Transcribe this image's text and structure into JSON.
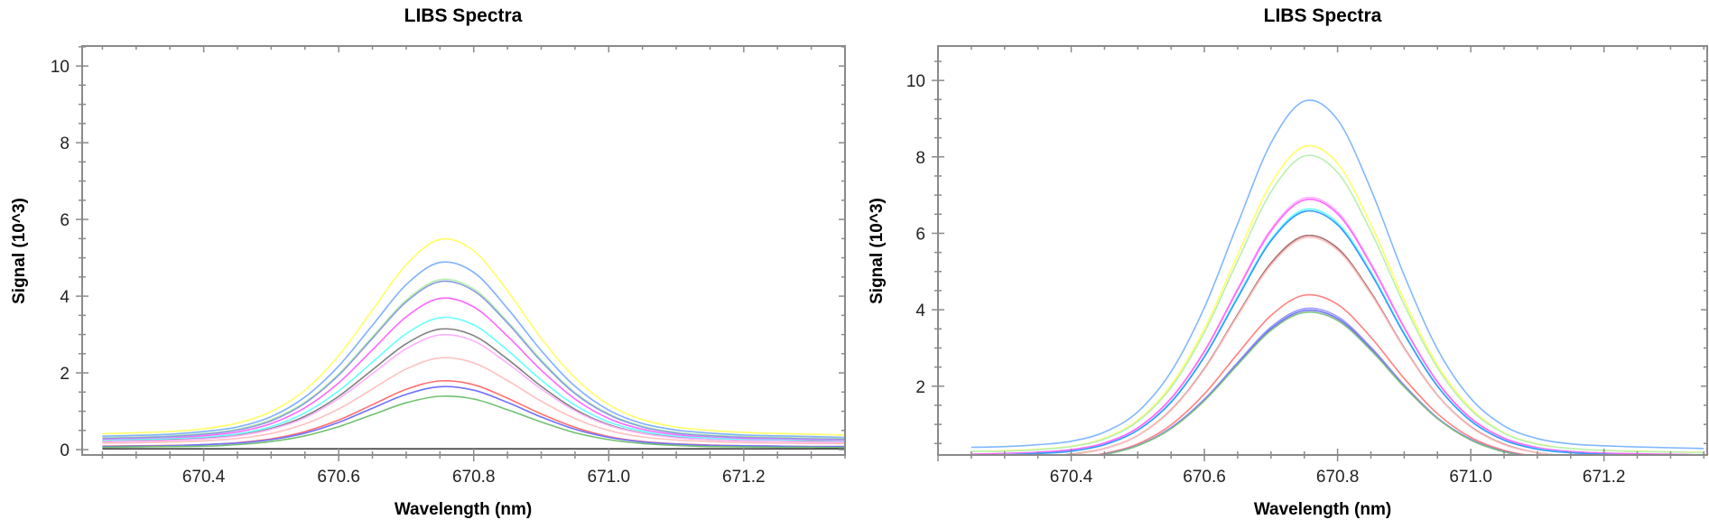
{
  "chart_data": [
    {
      "type": "line",
      "title": "LIBS Spectra",
      "xlabel": "Wavelength (nm)",
      "ylabel": "Signal (10^3)",
      "xlim": [
        670.22,
        671.35
      ],
      "ylim": [
        -0.14,
        10.52
      ],
      "xticks": [
        670.4,
        670.6,
        670.8,
        671.0,
        671.2
      ],
      "xtick_labels": [
        "670.4",
        "670.6",
        "670.8",
        "671.0",
        "671.2"
      ],
      "yticks": [
        0,
        2,
        4,
        6,
        8,
        10
      ],
      "ytick_labels": [
        "0",
        "2",
        "4",
        "6",
        "8",
        "10"
      ],
      "grid": false,
      "x": [
        670.25,
        670.3,
        670.35,
        670.4,
        670.45,
        670.5,
        670.55,
        670.6,
        670.65,
        670.7,
        670.75,
        670.8,
        670.85,
        670.9,
        670.95,
        671.0,
        671.05,
        671.1,
        671.15,
        671.2,
        671.25,
        671.3,
        671.35
      ],
      "series": [
        {
          "color": "#ffff66",
          "values": [
            0.41,
            0.44,
            0.47,
            0.54,
            0.69,
            0.99,
            1.55,
            2.45,
            3.64,
            4.82,
            5.48,
            5.18,
            4.14,
            2.9,
            1.87,
            1.17,
            0.78,
            0.59,
            0.5,
            0.45,
            0.42,
            0.4,
            0.38
          ]
        },
        {
          "color": "#80b0ff",
          "values": [
            0.35,
            0.37,
            0.4,
            0.47,
            0.59,
            0.86,
            1.37,
            2.18,
            3.24,
            4.3,
            4.88,
            4.62,
            3.68,
            2.58,
            1.65,
            1.03,
            0.68,
            0.51,
            0.43,
            0.38,
            0.36,
            0.34,
            0.32
          ]
        },
        {
          "color": "#b8f0b0",
          "values": [
            0.31,
            0.33,
            0.36,
            0.42,
            0.53,
            0.78,
            1.24,
            1.97,
            2.94,
            3.9,
            4.43,
            4.19,
            3.34,
            2.34,
            1.49,
            0.93,
            0.61,
            0.45,
            0.38,
            0.34,
            0.32,
            0.3,
            0.29
          ]
        },
        {
          "color": "#8c9be0",
          "values": [
            0.29,
            0.31,
            0.34,
            0.4,
            0.51,
            0.75,
            1.21,
            1.94,
            2.9,
            3.85,
            4.38,
            4.14,
            3.3,
            2.3,
            1.46,
            0.91,
            0.59,
            0.43,
            0.36,
            0.32,
            0.3,
            0.28,
            0.27
          ]
        },
        {
          "color": "#ff66ff",
          "values": [
            0.26,
            0.28,
            0.3,
            0.36,
            0.46,
            0.68,
            1.09,
            1.74,
            2.6,
            3.46,
            3.94,
            3.72,
            2.96,
            2.07,
            1.32,
            0.81,
            0.53,
            0.39,
            0.32,
            0.29,
            0.27,
            0.25,
            0.24
          ]
        },
        {
          "color": "#66ffff",
          "values": [
            0.24,
            0.26,
            0.28,
            0.32,
            0.41,
            0.6,
            0.96,
            1.53,
            2.28,
            3.02,
            3.44,
            3.25,
            2.59,
            1.81,
            1.16,
            0.72,
            0.48,
            0.35,
            0.3,
            0.26,
            0.25,
            0.23,
            0.22
          ]
        },
        {
          "color": "#808080",
          "values": [
            0.21,
            0.23,
            0.25,
            0.29,
            0.37,
            0.55,
            0.87,
            1.39,
            2.08,
            2.76,
            3.14,
            2.97,
            2.36,
            1.65,
            1.05,
            0.65,
            0.43,
            0.32,
            0.26,
            0.23,
            0.22,
            0.21,
            0.2
          ]
        },
        {
          "color": "#ffb0ff",
          "values": [
            0.21,
            0.22,
            0.24,
            0.28,
            0.36,
            0.53,
            0.83,
            1.33,
            1.98,
            2.63,
            2.99,
            2.83,
            2.25,
            1.58,
            1.01,
            0.63,
            0.42,
            0.31,
            0.26,
            0.23,
            0.22,
            0.2,
            0.2
          ]
        },
        {
          "color": "#ffc0c0",
          "values": [
            0.17,
            0.18,
            0.2,
            0.23,
            0.29,
            0.42,
            0.67,
            1.06,
            1.58,
            2.1,
            2.39,
            2.26,
            1.8,
            1.26,
            0.81,
            0.5,
            0.33,
            0.25,
            0.21,
            0.18,
            0.17,
            0.16,
            0.16
          ]
        },
        {
          "color": "#ff7070",
          "values": [
            0.09,
            0.1,
            0.11,
            0.13,
            0.18,
            0.28,
            0.47,
            0.77,
            1.17,
            1.57,
            1.79,
            1.69,
            1.34,
            0.93,
            0.58,
            0.34,
            0.21,
            0.15,
            0.12,
            0.1,
            0.09,
            0.08,
            0.08
          ]
        },
        {
          "color": "#7070ff",
          "values": [
            0.08,
            0.09,
            0.1,
            0.13,
            0.17,
            0.26,
            0.43,
            0.71,
            1.08,
            1.44,
            1.64,
            1.55,
            1.23,
            0.85,
            0.53,
            0.32,
            0.2,
            0.14,
            0.11,
            0.1,
            0.09,
            0.08,
            0.08
          ]
        },
        {
          "color": "#70c070",
          "values": [
            0.06,
            0.07,
            0.08,
            0.09,
            0.13,
            0.21,
            0.36,
            0.6,
            0.91,
            1.22,
            1.39,
            1.32,
            1.04,
            0.72,
            0.44,
            0.26,
            0.16,
            0.11,
            0.08,
            0.07,
            0.06,
            0.06,
            0.05
          ]
        },
        {
          "color": "#404040",
          "values": [
            0.02,
            0.02,
            0.02,
            0.02,
            0.02,
            0.02,
            0.02,
            0.02,
            0.02,
            0.02,
            0.02,
            0.02,
            0.02,
            0.02,
            0.02,
            0.02,
            0.02,
            0.02,
            0.02,
            0.02,
            0.02,
            0.02,
            0.02
          ]
        }
      ]
    },
    {
      "type": "line",
      "title": "LIBS Spectra",
      "xlabel": "Wavelength (nm)",
      "ylabel": "Signal (10^3)",
      "xlim": [
        670.2,
        671.355
      ],
      "ylim": [
        0.2,
        10.9
      ],
      "xticks": [
        670.4,
        670.6,
        670.8,
        671.0,
        671.2
      ],
      "xtick_labels": [
        "670.4",
        "670.6",
        "670.8",
        "671.0",
        "671.2"
      ],
      "yticks": [
        2,
        4,
        6,
        8,
        10
      ],
      "ytick_labels": [
        "2",
        "4",
        "6",
        "8",
        "10"
      ],
      "grid": false,
      "x": [
        670.25,
        670.3,
        670.35,
        670.4,
        670.45,
        670.5,
        670.55,
        670.6,
        670.65,
        670.7,
        670.75,
        670.8,
        670.85,
        670.9,
        670.95,
        671.0,
        671.05,
        671.1,
        671.15,
        671.2,
        671.25,
        671.3,
        671.35
      ],
      "series": [
        {
          "color": "#80b8ff",
          "values": [
            0.4,
            0.42,
            0.47,
            0.56,
            0.8,
            1.33,
            2.38,
            4.06,
            6.25,
            8.36,
            9.46,
            8.97,
            7.15,
            4.9,
            2.97,
            1.68,
            0.96,
            0.63,
            0.49,
            0.44,
            0.41,
            0.39,
            0.37
          ]
        },
        {
          "color": "#ffff66",
          "values": [
            0.29,
            0.31,
            0.35,
            0.43,
            0.64,
            1.11,
            2.03,
            3.51,
            5.44,
            7.3,
            8.27,
            7.83,
            6.23,
            4.25,
            2.55,
            1.42,
            0.78,
            0.49,
            0.37,
            0.32,
            0.3,
            0.28,
            0.27
          ]
        },
        {
          "color": "#b8f0b0",
          "values": [
            0.29,
            0.3,
            0.34,
            0.42,
            0.62,
            1.08,
            1.97,
            3.41,
            5.28,
            7.08,
            8.02,
            7.59,
            6.05,
            4.13,
            2.48,
            1.38,
            0.77,
            0.48,
            0.37,
            0.32,
            0.29,
            0.28,
            0.26
          ]
        },
        {
          "color": "#ffb0ff",
          "values": [
            0.22,
            0.24,
            0.27,
            0.34,
            0.52,
            0.91,
            1.69,
            2.93,
            4.55,
            6.11,
            6.92,
            6.56,
            5.22,
            3.55,
            2.12,
            1.17,
            0.64,
            0.4,
            0.29,
            0.25,
            0.23,
            0.22,
            0.2
          ]
        },
        {
          "color": "#ff66ff",
          "values": [
            0.22,
            0.24,
            0.27,
            0.34,
            0.51,
            0.91,
            1.68,
            2.91,
            4.52,
            6.06,
            6.87,
            6.51,
            5.18,
            3.53,
            2.11,
            1.16,
            0.64,
            0.39,
            0.29,
            0.25,
            0.23,
            0.22,
            0.2
          ]
        },
        {
          "color": "#66ffff",
          "values": [
            0.19,
            0.21,
            0.24,
            0.3,
            0.47,
            0.85,
            1.6,
            2.79,
            4.35,
            5.84,
            6.62,
            6.27,
            4.99,
            3.39,
            2.01,
            1.1,
            0.59,
            0.36,
            0.26,
            0.22,
            0.2,
            0.19,
            0.17
          ]
        },
        {
          "color": "#3399ff",
          "values": [
            0.19,
            0.2,
            0.24,
            0.3,
            0.47,
            0.85,
            1.58,
            2.77,
            4.31,
            5.8,
            6.57,
            6.22,
            4.95,
            3.36,
            2.0,
            1.09,
            0.59,
            0.35,
            0.26,
            0.22,
            0.2,
            0.19,
            0.17
          ]
        },
        {
          "color": "#808080",
          "values": [
            0.11,
            0.13,
            0.16,
            0.22,
            0.37,
            0.71,
            1.38,
            2.46,
            3.87,
            5.22,
            5.93,
            5.61,
            4.45,
            3.0,
            1.76,
            0.94,
            0.48,
            0.26,
            0.17,
            0.14,
            0.12,
            0.11,
            0.1
          ]
        },
        {
          "color": "#b07070",
          "values": [
            0.11,
            0.13,
            0.16,
            0.22,
            0.37,
            0.71,
            1.38,
            2.46,
            3.87,
            5.22,
            5.93,
            5.61,
            4.45,
            3.0,
            1.76,
            0.94,
            0.48,
            0.26,
            0.17,
            0.14,
            0.12,
            0.11,
            0.1
          ]
        },
        {
          "color": "#ffc0c0",
          "values": [
            0.11,
            0.13,
            0.16,
            0.21,
            0.37,
            0.71,
            1.37,
            2.44,
            3.84,
            5.17,
            5.88,
            5.56,
            4.41,
            2.98,
            1.75,
            0.93,
            0.47,
            0.26,
            0.17,
            0.14,
            0.12,
            0.11,
            0.1
          ]
        },
        {
          "color": "#ff8080",
          "values": [
            0.05,
            0.06,
            0.08,
            0.12,
            0.24,
            0.49,
            0.99,
            1.8,
            2.85,
            3.85,
            4.38,
            4.14,
            3.28,
            2.2,
            1.28,
            0.66,
            0.32,
            0.16,
            0.09,
            0.07,
            0.05,
            0.04,
            0.04
          ]
        },
        {
          "color": "#9999ff",
          "values": [
            0.04,
            0.05,
            0.07,
            0.11,
            0.22,
            0.45,
            0.92,
            1.66,
            2.62,
            3.55,
            4.03,
            3.82,
            3.02,
            2.03,
            1.17,
            0.61,
            0.29,
            0.15,
            0.09,
            0.06,
            0.05,
            0.04,
            0.03
          ]
        },
        {
          "color": "#7070ff",
          "values": [
            0.04,
            0.05,
            0.07,
            0.11,
            0.22,
            0.45,
            0.9,
            1.64,
            2.59,
            3.5,
            3.98,
            3.77,
            2.98,
            2.0,
            1.16,
            0.6,
            0.29,
            0.14,
            0.08,
            0.06,
            0.05,
            0.04,
            0.03
          ]
        },
        {
          "color": "#80c080",
          "values": [
            0.04,
            0.05,
            0.07,
            0.11,
            0.21,
            0.44,
            0.89,
            1.62,
            2.56,
            3.46,
            3.93,
            3.72,
            2.94,
            1.98,
            1.15,
            0.59,
            0.28,
            0.14,
            0.08,
            0.06,
            0.05,
            0.04,
            0.03
          ]
        }
      ]
    }
  ]
}
